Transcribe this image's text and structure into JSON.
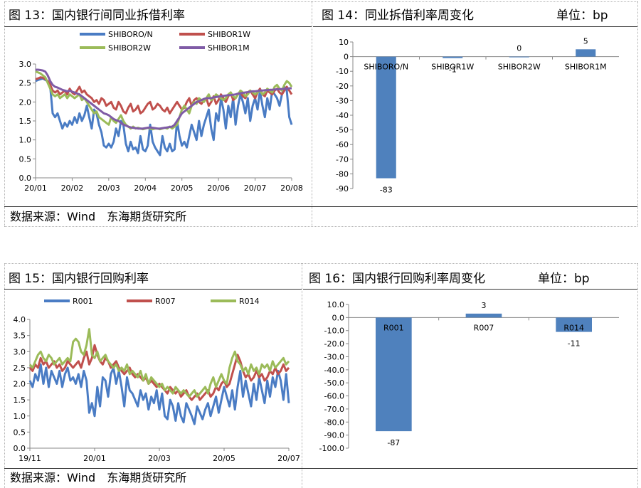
{
  "source_note": "数据来源：Wind　东海期货研究所",
  "unit_label": "单位：bp",
  "panels": {
    "p13": {
      "title": "图 13：国内银行间同业拆借利率"
    },
    "p14": {
      "title": "图 14：同业拆借利率周变化"
    },
    "p15": {
      "title": "图 15：国内银行回购利率"
    },
    "p16": {
      "title": "图 16：国内银行回购利率周变化"
    }
  },
  "chart_data": [
    {
      "id": "c13",
      "type": "line",
      "x_ticks": [
        "20/01",
        "20/02",
        "20/03",
        "20/04",
        "20/05",
        "20/06",
        "20/07",
        "20/08"
      ],
      "y_ticks": [
        "0.0",
        "0.5",
        "1.0",
        "1.5",
        "2.0",
        "2.5",
        "3.0"
      ],
      "ylim": [
        0,
        3.0
      ],
      "legend_position": "top",
      "series": [
        {
          "name": "SHIBORO/N",
          "color": "#4a7cc4",
          "values": [
            2.55,
            2.58,
            2.6,
            2.62,
            2.58,
            2.55,
            2.4,
            1.7,
            1.6,
            1.7,
            1.5,
            1.3,
            1.45,
            1.35,
            1.5,
            1.4,
            1.6,
            1.45,
            1.7,
            1.5,
            1.65,
            1.9,
            1.6,
            1.3,
            1.8,
            1.7,
            1.4,
            1.2,
            0.85,
            0.8,
            0.9,
            0.8,
            0.95,
            1.3,
            1.1,
            1.5,
            1.4,
            0.9,
            0.7,
            0.95,
            0.75,
            0.8,
            0.65,
            1.1,
            0.75,
            0.7,
            0.85,
            1.4,
            0.95,
            0.8,
            0.7,
            0.6,
            1.1,
            0.8,
            0.7,
            0.9,
            0.7,
            0.75,
            1.5,
            1.1,
            0.85,
            0.95,
            0.8,
            1.1,
            1.4,
            1.2,
            1.0,
            1.5,
            1.1,
            1.4,
            1.6,
            1.8,
            1.3,
            1.0,
            1.7,
            1.5,
            2.1,
            1.8,
            1.3,
            1.9,
            1.6,
            2.1,
            1.4,
            1.9,
            2.2,
            2.0,
            1.7,
            2.1,
            1.5,
            1.9,
            2.1,
            1.8,
            2.3,
            1.9,
            1.6,
            2.1,
            1.8,
            2.3,
            2.2,
            2.1,
            1.9,
            2.2,
            2.4,
            2.3,
            1.6,
            1.4
          ]
        },
        {
          "name": "SHIBOR1W",
          "color": "#c0504d",
          "values": [
            2.6,
            2.62,
            2.65,
            2.64,
            2.6,
            2.55,
            2.45,
            2.3,
            2.25,
            2.3,
            2.2,
            2.25,
            2.3,
            2.2,
            2.35,
            2.25,
            2.2,
            2.3,
            2.4,
            2.25,
            2.3,
            2.2,
            2.15,
            2.1,
            2.0,
            2.05,
            1.95,
            2.1,
            2.05,
            1.9,
            1.95,
            2.0,
            1.85,
            1.8,
            2.0,
            1.9,
            1.75,
            1.7,
            1.85,
            1.95,
            1.75,
            1.8,
            1.9,
            1.7,
            1.75,
            1.85,
            1.95,
            2.0,
            1.8,
            1.85,
            1.95,
            1.9,
            1.8,
            1.75,
            1.85,
            1.7,
            1.8,
            1.9,
            2.0,
            1.9,
            1.8,
            1.85,
            2.0,
            2.1,
            1.9,
            2.05,
            2.1,
            2.0,
            1.95,
            2.05,
            2.1,
            1.9,
            2.0,
            2.15,
            1.95,
            2.05,
            2.2,
            2.1,
            2.0,
            2.15,
            2.25,
            2.05,
            2.1,
            2.2,
            2.25,
            2.15,
            2.1,
            2.25,
            2.3,
            2.2,
            2.1,
            2.25,
            2.35,
            2.2,
            2.15,
            2.3,
            2.25,
            2.2,
            2.3,
            2.35,
            2.25,
            2.2,
            2.3,
            2.4,
            2.3,
            2.2
          ]
        },
        {
          "name": "SHIBOR2W",
          "color": "#9bbb59",
          "values": [
            2.8,
            2.78,
            2.75,
            2.7,
            2.65,
            2.5,
            2.35,
            2.2,
            2.15,
            2.2,
            2.1,
            2.15,
            2.2,
            2.1,
            2.2,
            2.15,
            2.1,
            2.15,
            2.2,
            2.05,
            2.1,
            2.0,
            1.9,
            1.8,
            1.7,
            1.75,
            1.6,
            1.55,
            1.5,
            1.45,
            1.4,
            1.6,
            1.5,
            1.45,
            1.55,
            1.65,
            1.5,
            1.4,
            1.35,
            1.3,
            1.35,
            1.3,
            1.32,
            1.3,
            1.28,
            1.3,
            1.32,
            1.3,
            1.28,
            1.3,
            1.3,
            1.28,
            1.3,
            1.32,
            1.3,
            1.35,
            1.3,
            1.35,
            1.4,
            1.6,
            1.8,
            1.9,
            1.8,
            1.7,
            1.9,
            2.0,
            1.95,
            2.1,
            2.05,
            2.0,
            2.1,
            2.2,
            2.05,
            2.1,
            2.2,
            2.15,
            2.1,
            2.05,
            2.1,
            2.2,
            2.25,
            2.15,
            2.1,
            2.2,
            2.3,
            2.25,
            2.15,
            2.2,
            2.3,
            2.25,
            2.2,
            2.25,
            2.3,
            2.2,
            2.25,
            2.35,
            2.3,
            2.25,
            2.4,
            2.45,
            2.35,
            2.3,
            2.45,
            2.55,
            2.5,
            2.4
          ]
        },
        {
          "name": "SHIBOR1M",
          "color": "#7f5ba6",
          "values": [
            2.85,
            2.85,
            2.84,
            2.83,
            2.8,
            2.7,
            2.55,
            2.45,
            2.4,
            2.38,
            2.35,
            2.32,
            2.3,
            2.28,
            2.3,
            2.27,
            2.25,
            2.22,
            2.2,
            2.15,
            2.1,
            2.05,
            2.0,
            1.95,
            1.9,
            1.85,
            1.8,
            1.75,
            1.7,
            1.68,
            1.65,
            1.6,
            1.55,
            1.52,
            1.5,
            1.45,
            1.4,
            1.38,
            1.35,
            1.33,
            1.32,
            1.31,
            1.3,
            1.3,
            1.3,
            1.31,
            1.32,
            1.33,
            1.32,
            1.31,
            1.3,
            1.3,
            1.31,
            1.32,
            1.33,
            1.34,
            1.35,
            1.4,
            1.5,
            1.6,
            1.7,
            1.75,
            1.8,
            1.85,
            1.9,
            1.95,
            2.0,
            2.02,
            2.05,
            2.08,
            2.1,
            2.1,
            2.1,
            2.12,
            2.13,
            2.14,
            2.15,
            2.16,
            2.17,
            2.18,
            2.18,
            2.19,
            2.2,
            2.22,
            2.23,
            2.24,
            2.25,
            2.26,
            2.27,
            2.28,
            2.28,
            2.29,
            2.3,
            2.3,
            2.31,
            2.31,
            2.32,
            2.32,
            2.33,
            2.33,
            2.34,
            2.34,
            2.35,
            2.35,
            2.36,
            2.36
          ]
        }
      ]
    },
    {
      "id": "c14",
      "type": "bar",
      "categories": [
        "SHIBORO/N",
        "SHIBOR1W",
        "SHIBOR2W",
        "SHIBOR1M"
      ],
      "values": [
        -83,
        -1,
        0,
        5
      ],
      "data_labels": [
        "-83",
        "-1",
        "0",
        "5"
      ],
      "y_ticks": [
        "10",
        "0",
        "-10",
        "-20",
        "-30",
        "-40",
        "-50",
        "-60",
        "-70",
        "-80",
        "-90"
      ],
      "ylim": [
        -90,
        10
      ],
      "bar_color": "#4f81bd"
    },
    {
      "id": "c15",
      "type": "line",
      "x_ticks": [
        "19/11",
        "20/01",
        "20/03",
        "20/05",
        "20/07"
      ],
      "y_ticks": [
        "0.0",
        "0.5",
        "1.0",
        "1.5",
        "2.0",
        "2.5",
        "3.0",
        "3.5",
        "4.0"
      ],
      "ylim": [
        0,
        4.0
      ],
      "legend_position": "top",
      "series": [
        {
          "name": "R001",
          "color": "#4a7cc4",
          "values": [
            2.1,
            1.9,
            2.3,
            2.1,
            2.6,
            2.0,
            2.5,
            1.9,
            2.4,
            2.2,
            2.0,
            2.4,
            1.9,
            2.3,
            2.5,
            2.1,
            2.2,
            2.0,
            2.3,
            1.9,
            2.4,
            2.1,
            1.1,
            1.4,
            1.0,
            1.9,
            1.3,
            2.2,
            2.1,
            1.6,
            2.3,
            2.5,
            2.0,
            2.4,
            1.9,
            1.3,
            2.2,
            1.8,
            1.7,
            1.5,
            1.3,
            1.8,
            1.5,
            1.7,
            1.2,
            1.6,
            1.4,
            1.8,
            1.2,
            1.7,
            1.0,
            0.9,
            1.5,
            1.3,
            0.85,
            1.4,
            1.0,
            0.8,
            1.4,
            1.2,
            1.0,
            0.75,
            1.3,
            1.1,
            0.9,
            1.2,
            1.4,
            1.0,
            1.3,
            1.6,
            1.1,
            1.5,
            1.9,
            1.6,
            1.3,
            1.8,
            1.2,
            1.9,
            2.4,
            1.6,
            2.1,
            1.7,
            1.3,
            2.0,
            1.5,
            2.2,
            1.8,
            1.4,
            2.1,
            1.6,
            2.2,
            1.9,
            2.4,
            2.1,
            1.5,
            2.3,
            1.4
          ]
        },
        {
          "name": "R007",
          "color": "#c0504d",
          "values": [
            2.5,
            2.4,
            2.6,
            2.5,
            2.8,
            2.6,
            2.7,
            2.5,
            2.6,
            2.7,
            2.5,
            2.6,
            2.4,
            2.5,
            2.7,
            2.6,
            2.5,
            2.6,
            2.7,
            2.5,
            2.8,
            3.0,
            2.6,
            2.8,
            3.2,
            2.9,
            2.7,
            2.6,
            2.8,
            2.7,
            2.5,
            2.6,
            2.7,
            2.5,
            2.4,
            2.3,
            2.4,
            2.5,
            2.3,
            2.2,
            2.3,
            2.2,
            2.1,
            2.2,
            2.0,
            2.1,
            2.0,
            1.9,
            2.0,
            1.9,
            1.8,
            1.7,
            1.9,
            1.8,
            1.7,
            1.8,
            1.6,
            1.7,
            1.8,
            1.6,
            1.5,
            1.6,
            1.7,
            1.5,
            1.6,
            1.7,
            1.8,
            1.6,
            1.7,
            1.9,
            1.8,
            2.0,
            2.1,
            1.9,
            2.0,
            2.3,
            2.6,
            2.9,
            2.7,
            2.4,
            2.2,
            2.3,
            2.1,
            2.2,
            2.4,
            2.2,
            2.3,
            2.1,
            2.2,
            2.4,
            2.3,
            2.5,
            2.3,
            2.4,
            2.6,
            2.4,
            2.5
          ]
        },
        {
          "name": "R014",
          "color": "#9bbb59",
          "values": [
            2.6,
            2.5,
            2.7,
            2.9,
            3.0,
            2.8,
            2.7,
            2.9,
            2.8,
            2.6,
            2.7,
            2.8,
            2.6,
            2.7,
            2.8,
            2.7,
            3.3,
            3.4,
            3.3,
            3.0,
            2.9,
            3.2,
            3.7,
            2.9,
            2.8,
            3.0,
            2.7,
            2.8,
            2.9,
            2.7,
            2.6,
            2.5,
            2.6,
            2.4,
            2.5,
            2.4,
            2.6,
            2.3,
            2.4,
            2.3,
            2.2,
            2.4,
            2.1,
            2.3,
            2.0,
            2.2,
            2.1,
            2.0,
            1.9,
            2.0,
            1.8,
            1.9,
            1.8,
            1.7,
            1.9,
            1.8,
            1.7,
            1.8,
            1.7,
            1.6,
            1.7,
            1.8,
            1.6,
            1.7,
            1.8,
            1.9,
            1.7,
            2.0,
            2.2,
            1.9,
            2.1,
            2.3,
            2.1,
            2.0,
            2.5,
            2.8,
            3.0,
            2.7,
            2.6,
            2.4,
            2.5,
            2.3,
            2.6,
            2.4,
            2.5,
            2.3,
            2.6,
            2.5,
            2.6,
            2.4,
            2.7,
            2.5,
            2.6,
            2.7,
            2.8,
            2.6,
            2.7
          ]
        }
      ]
    },
    {
      "id": "c16",
      "type": "bar",
      "categories": [
        "R001",
        "R007",
        "R014"
      ],
      "values": [
        -87,
        3,
        -11
      ],
      "data_labels": [
        "-87",
        "3",
        "-11"
      ],
      "y_ticks": [
        "10.0",
        "0.0",
        "-10.0",
        "-20.0",
        "-30.0",
        "-40.0",
        "-50.0",
        "-60.0",
        "-70.0",
        "-80.0",
        "-90.0",
        "-100.0"
      ],
      "ylim": [
        -100,
        10
      ],
      "bar_color": "#4f81bd"
    }
  ]
}
